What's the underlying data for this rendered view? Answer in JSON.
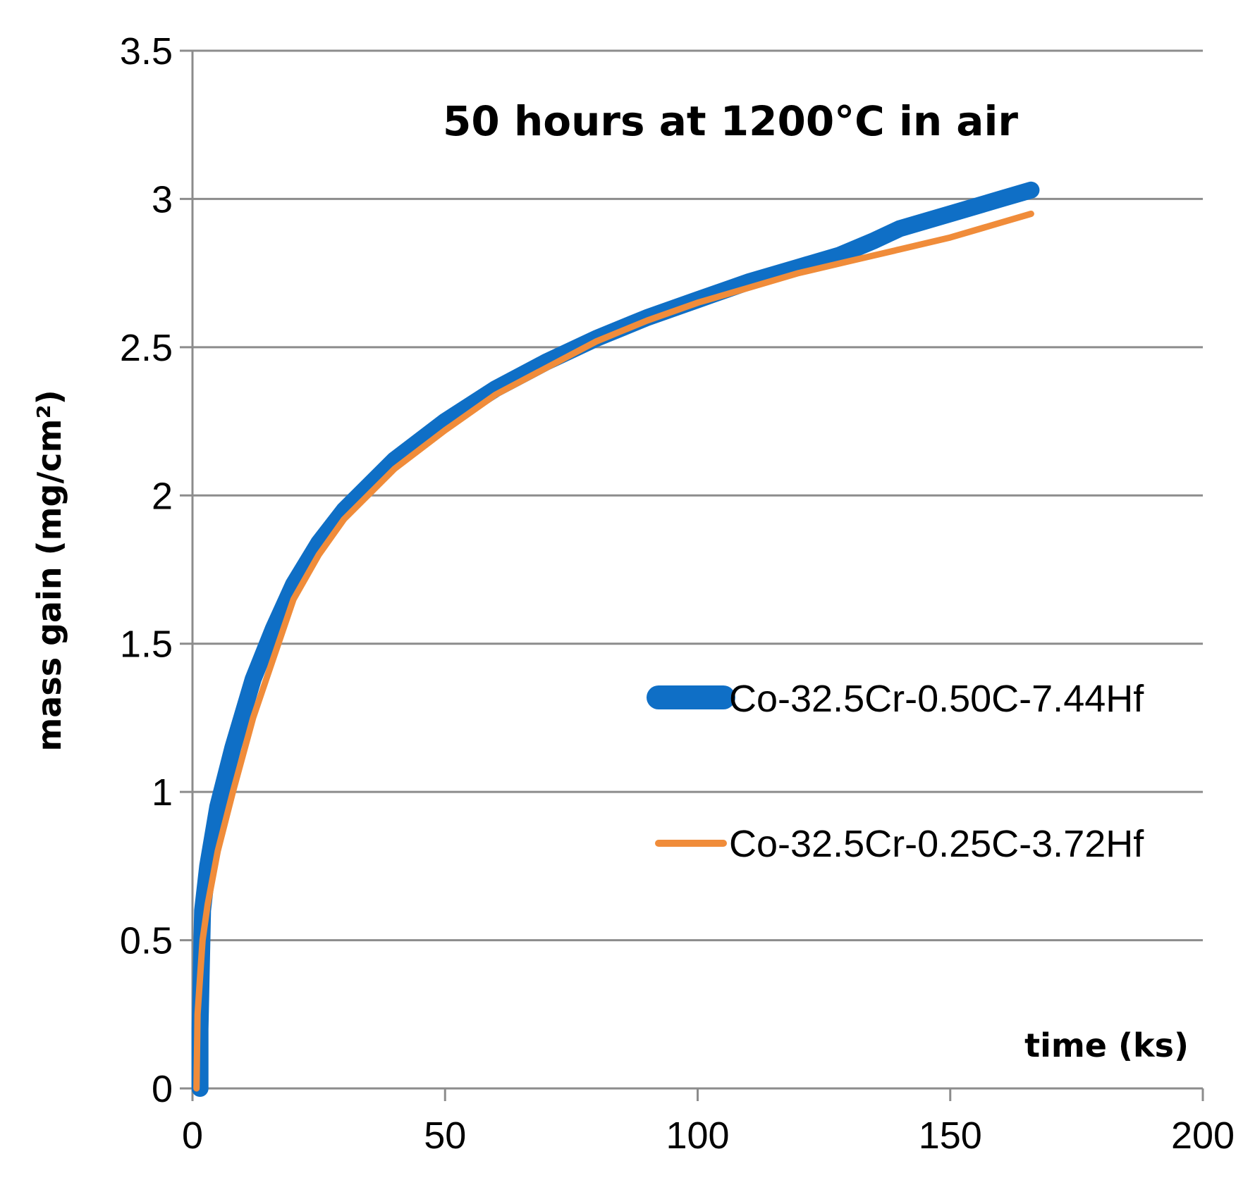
{
  "chart_data": {
    "type": "line",
    "title": "50 hours at 1200°C in air",
    "xlabel": "time (ks)",
    "ylabel": "mass gain (mg/cm²)",
    "xlim": [
      0,
      200
    ],
    "ylim": [
      0,
      3.5
    ],
    "x_ticks": [
      "0",
      "50",
      "100",
      "150",
      "200"
    ],
    "y_ticks": [
      "0",
      "0.5",
      "1",
      "1.5",
      "2",
      "2.5",
      "3",
      "3.5"
    ],
    "grid": "horizontal",
    "legend_position": "right",
    "series": [
      {
        "name": "Co-32.5Cr-0.50C-7.44Hf",
        "color": "#0f6fc6",
        "style": "thick",
        "x": [
          1.5,
          1.5,
          2,
          3,
          5,
          8,
          12,
          16,
          20,
          25,
          30,
          40,
          50,
          60,
          70,
          80,
          90,
          100,
          110,
          120,
          128,
          135,
          140,
          150,
          160,
          166
        ],
        "y": [
          0,
          0.2,
          0.6,
          0.75,
          0.95,
          1.15,
          1.38,
          1.55,
          1.7,
          1.84,
          1.95,
          2.12,
          2.25,
          2.36,
          2.45,
          2.53,
          2.6,
          2.66,
          2.72,
          2.77,
          2.81,
          2.86,
          2.9,
          2.95,
          3.0,
          3.03
        ]
      },
      {
        "name": "Co-32.5Cr-0.25C-3.72Hf",
        "color": "#f08c3a",
        "style": "thin",
        "x": [
          0.8,
          1,
          2,
          3,
          5,
          8,
          12,
          16,
          20,
          25,
          30,
          40,
          50,
          60,
          70,
          80,
          90,
          100,
          110,
          120,
          130,
          140,
          150,
          160,
          166
        ],
        "y": [
          0,
          0.25,
          0.5,
          0.62,
          0.8,
          1.0,
          1.25,
          1.45,
          1.65,
          1.8,
          1.92,
          2.09,
          2.22,
          2.34,
          2.43,
          2.52,
          2.59,
          2.65,
          2.7,
          2.75,
          2.79,
          2.83,
          2.87,
          2.92,
          2.95
        ]
      }
    ]
  }
}
